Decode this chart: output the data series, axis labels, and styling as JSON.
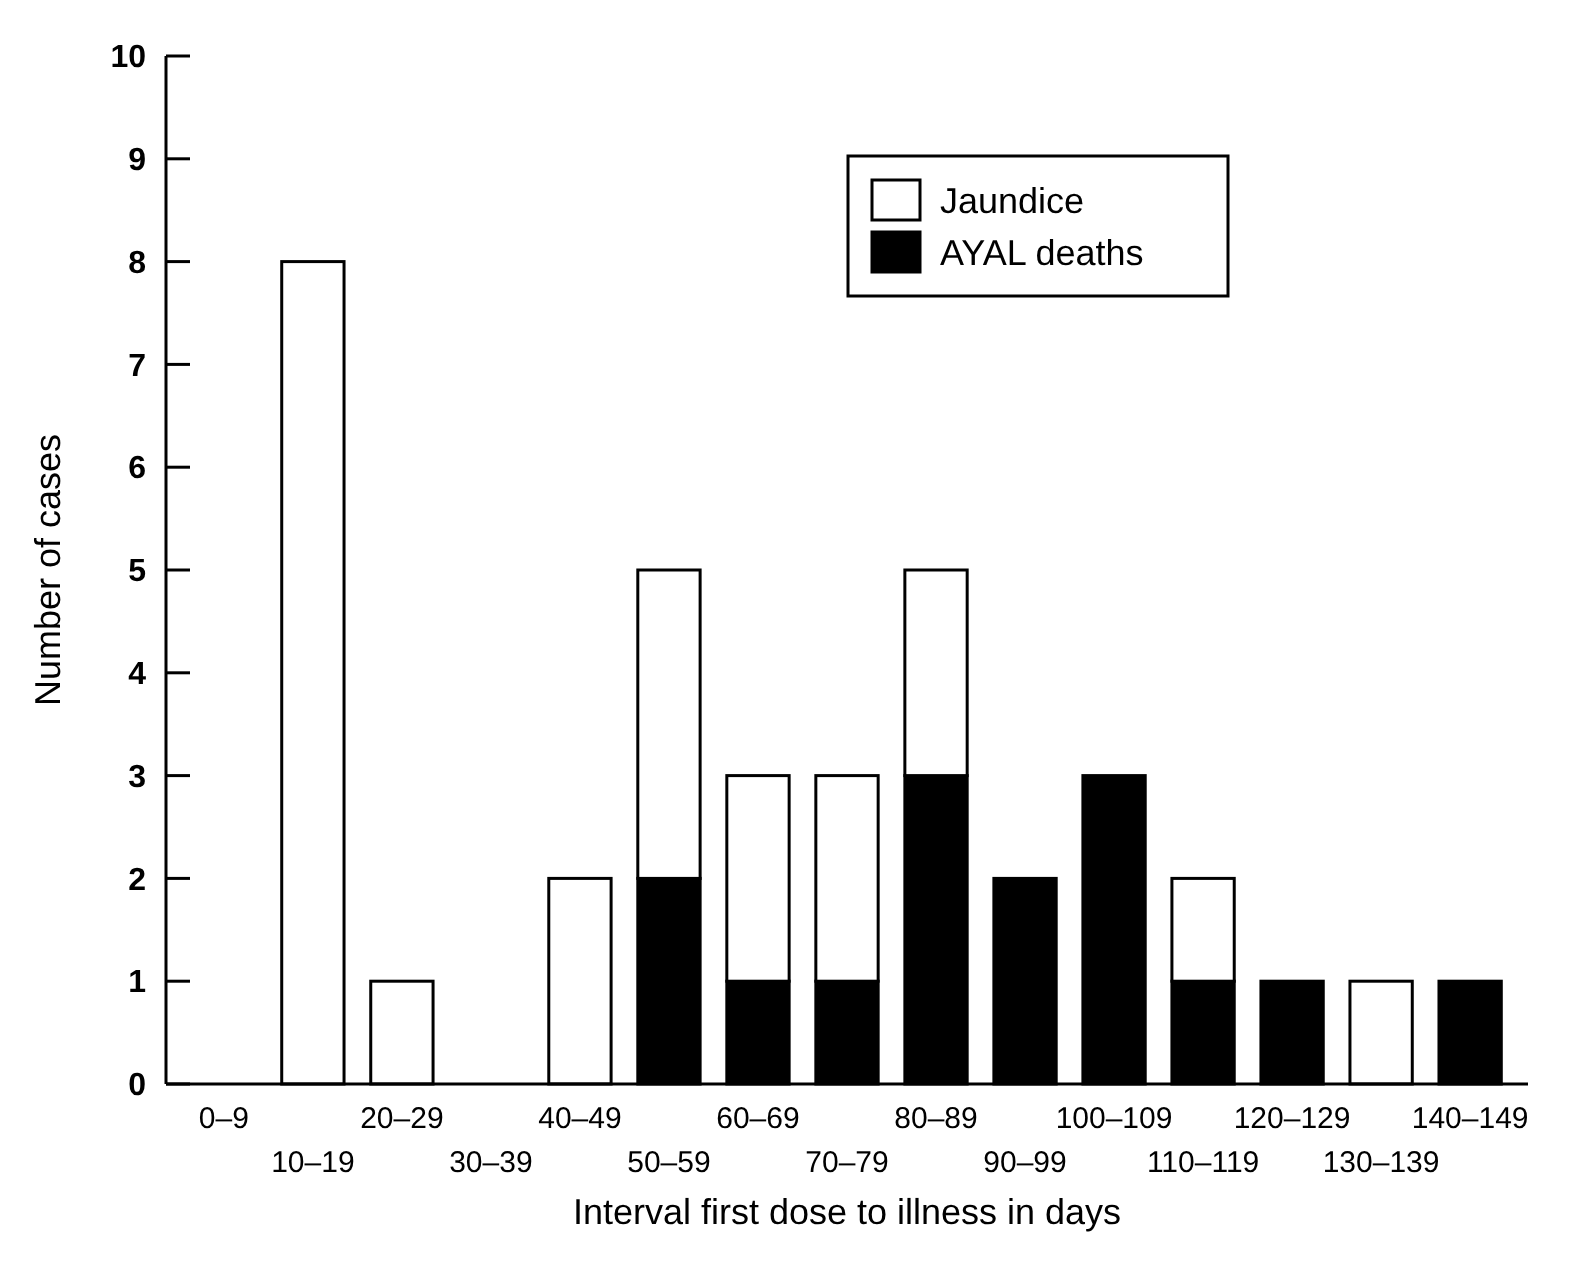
{
  "chart_data": {
    "type": "bar",
    "stacked": true,
    "xlabel": "Interval first dose to illness in days",
    "ylabel": "Number of cases",
    "categories": [
      "0–9",
      "10–19",
      "20–29",
      "30–39",
      "40–49",
      "50–59",
      "60–69",
      "70–79",
      "80–89",
      "90–99",
      "100–109",
      "110–119",
      "120–129",
      "130–139",
      "140–149"
    ],
    "series": [
      {
        "name": "AYAL deaths",
        "color": "#000000",
        "values": [
          0,
          0,
          0,
          0,
          0,
          2,
          1,
          1,
          3,
          2,
          3,
          1,
          1,
          0,
          1
        ]
      },
      {
        "name": "Jaundice",
        "color": "#ffffff",
        "values": [
          0,
          8,
          1,
          0,
          2,
          3,
          2,
          2,
          2,
          0,
          0,
          1,
          0,
          1,
          0
        ]
      }
    ],
    "ylim": [
      0,
      10
    ],
    "yticks": [
      0,
      1,
      2,
      3,
      4,
      5,
      6,
      7,
      8,
      9,
      10
    ],
    "grid": false,
    "legend": "top right"
  }
}
